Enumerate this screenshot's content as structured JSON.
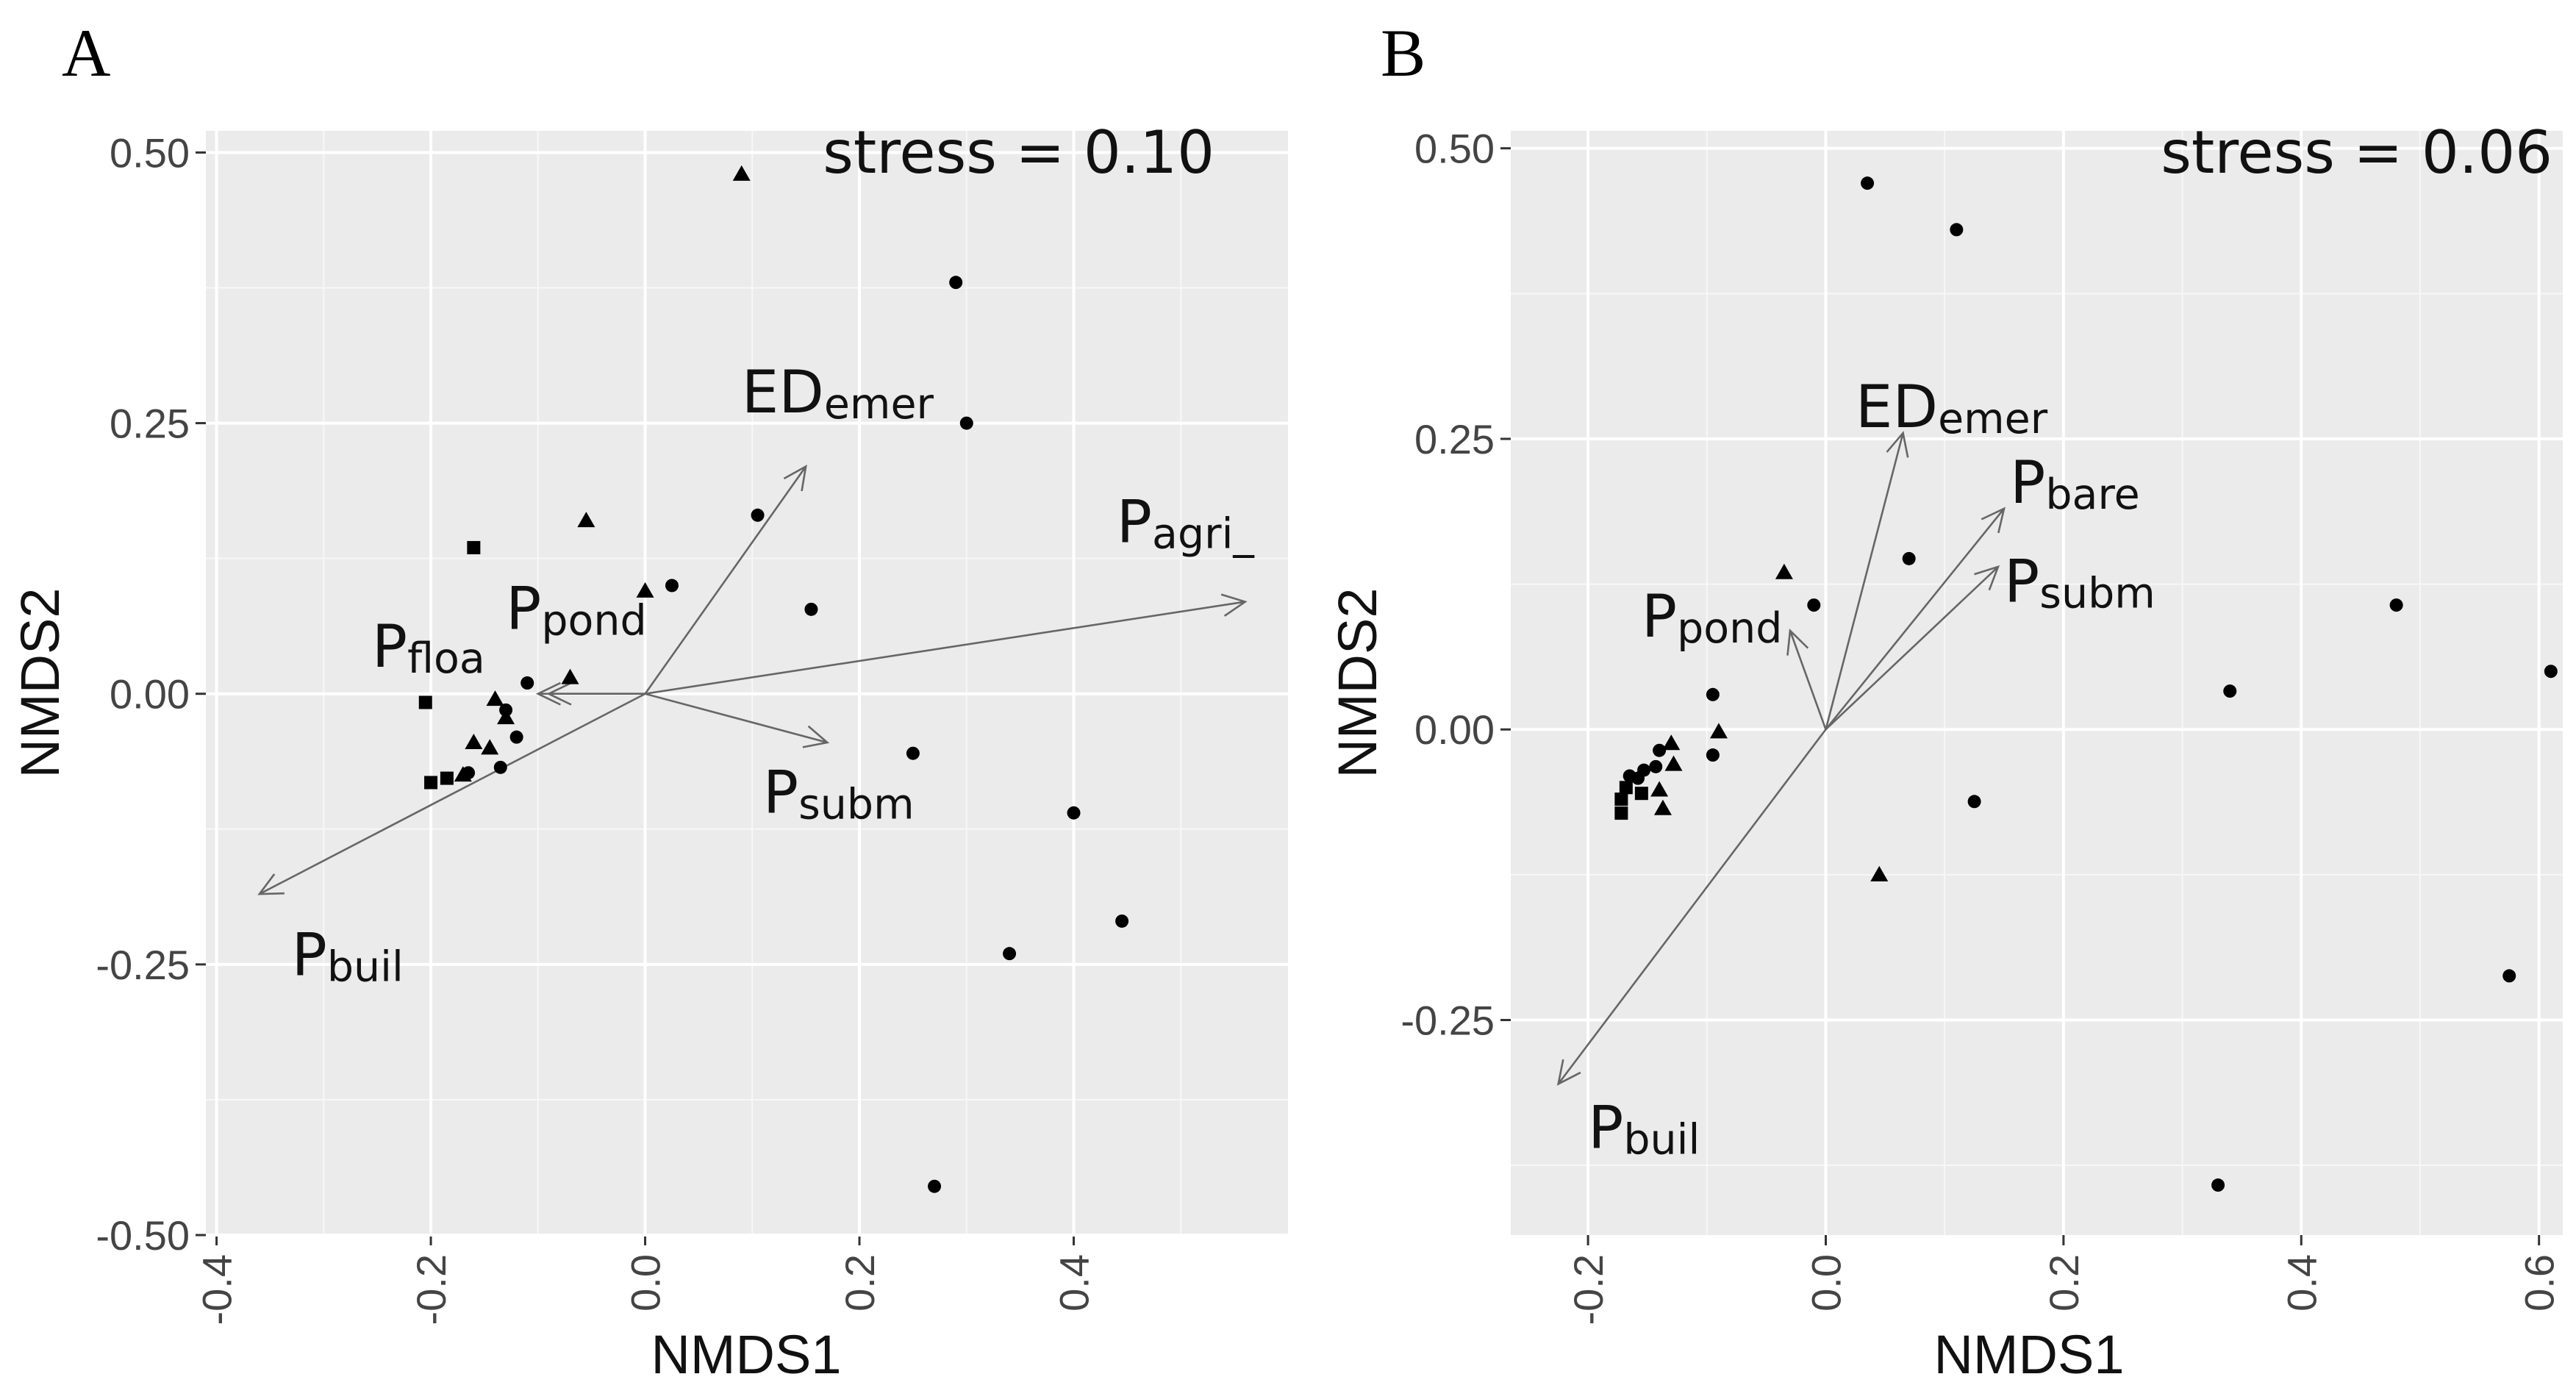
{
  "chart_data": [
    {
      "panel": "A",
      "type": "scatter",
      "stress": "stress = 0.10",
      "xlabel": "NMDS1",
      "ylabel": "NMDS2",
      "xlim": [
        -0.41,
        0.6
      ],
      "ylim": [
        -0.5,
        0.52
      ],
      "xticks": [
        -0.4,
        -0.2,
        0.0,
        0.2,
        0.4
      ],
      "xtick_labels": [
        "-0.4",
        "-0.2",
        "0.0",
        "0.2",
        "0.4"
      ],
      "yticks": [
        0.5,
        0.25,
        0.0,
        -0.25,
        -0.5
      ],
      "ytick_labels": [
        "0.50",
        "0.25",
        "0.00",
        "-0.25",
        "-0.50"
      ],
      "points": [
        {
          "x": 0.09,
          "y": 0.48,
          "shape": "triangle"
        },
        {
          "x": 0.29,
          "y": 0.38,
          "shape": "circle"
        },
        {
          "x": 0.3,
          "y": 0.25,
          "shape": "circle"
        },
        {
          "x": 0.105,
          "y": 0.165,
          "shape": "circle"
        },
        {
          "x": -0.055,
          "y": 0.16,
          "shape": "triangle"
        },
        {
          "x": -0.16,
          "y": 0.135,
          "shape": "square"
        },
        {
          "x": 0.0,
          "y": 0.095,
          "shape": "triangle"
        },
        {
          "x": 0.025,
          "y": 0.1,
          "shape": "circle"
        },
        {
          "x": 0.155,
          "y": 0.078,
          "shape": "circle"
        },
        {
          "x": -0.07,
          "y": 0.015,
          "shape": "triangle"
        },
        {
          "x": -0.11,
          "y": 0.01,
          "shape": "circle"
        },
        {
          "x": -0.205,
          "y": -0.008,
          "shape": "square"
        },
        {
          "x": -0.14,
          "y": -0.005,
          "shape": "triangle"
        },
        {
          "x": -0.13,
          "y": -0.015,
          "shape": "circle"
        },
        {
          "x": -0.13,
          "y": -0.022,
          "shape": "triangle"
        },
        {
          "x": -0.12,
          "y": -0.04,
          "shape": "circle"
        },
        {
          "x": -0.16,
          "y": -0.045,
          "shape": "triangle"
        },
        {
          "x": -0.145,
          "y": -0.05,
          "shape": "triangle"
        },
        {
          "x": -0.135,
          "y": -0.068,
          "shape": "circle"
        },
        {
          "x": -0.17,
          "y": -0.075,
          "shape": "triangle"
        },
        {
          "x": -0.165,
          "y": -0.073,
          "shape": "circle"
        },
        {
          "x": -0.185,
          "y": -0.078,
          "shape": "square"
        },
        {
          "x": -0.2,
          "y": -0.082,
          "shape": "square"
        },
        {
          "x": 0.25,
          "y": -0.055,
          "shape": "circle"
        },
        {
          "x": 0.4,
          "y": -0.11,
          "shape": "circle"
        },
        {
          "x": 0.445,
          "y": -0.21,
          "shape": "circle"
        },
        {
          "x": 0.34,
          "y": -0.24,
          "shape": "circle"
        },
        {
          "x": 0.27,
          "y": -0.455,
          "shape": "circle"
        }
      ],
      "vectors": [
        {
          "name": "ED",
          "sub": "emer",
          "x": 0.15,
          "y": 0.21,
          "label_x": 0.09,
          "label_y": 0.26
        },
        {
          "name": "P",
          "sub": "agri_",
          "x": 0.56,
          "y": 0.085,
          "label_x": 0.44,
          "label_y": 0.14
        },
        {
          "name": "P",
          "sub": "pond",
          "x": -0.09,
          "y": 0.0,
          "label_x": -0.13,
          "label_y": 0.06
        },
        {
          "name": "P",
          "sub": "floa",
          "x": -0.1,
          "y": 0.0,
          "label_x": -0.255,
          "label_y": 0.025
        },
        {
          "name": "P",
          "sub": "subm",
          "x": 0.17,
          "y": -0.045,
          "label_x": 0.11,
          "label_y": -0.11
        },
        {
          "name": "P",
          "sub": "buil",
          "x": -0.36,
          "y": -0.185,
          "label_x": -0.33,
          "label_y": -0.26
        }
      ]
    },
    {
      "panel": "B",
      "type": "scatter",
      "stress": "stress = 0.06",
      "xlabel": "NMDS1",
      "ylabel": "NMDS2",
      "xlim": [
        -0.265,
        0.62
      ],
      "ylim": [
        -0.435,
        0.515
      ],
      "xticks": [
        -0.2,
        0.0,
        0.2,
        0.4,
        0.6
      ],
      "xtick_labels": [
        "-0.2",
        "0.0",
        "0.2",
        "0.4",
        "0.6"
      ],
      "yticks": [
        0.5,
        0.25,
        0.0,
        -0.25
      ],
      "ytick_labels": [
        "0.50",
        "0.25",
        "0.00",
        "-0.25"
      ],
      "points": [
        {
          "x": 0.035,
          "y": 0.47,
          "shape": "circle"
        },
        {
          "x": 0.11,
          "y": 0.43,
          "shape": "circle"
        },
        {
          "x": 0.07,
          "y": 0.147,
          "shape": "circle"
        },
        {
          "x": -0.035,
          "y": 0.135,
          "shape": "triangle"
        },
        {
          "x": -0.01,
          "y": 0.107,
          "shape": "circle"
        },
        {
          "x": 0.48,
          "y": 0.107,
          "shape": "circle"
        },
        {
          "x": 0.61,
          "y": 0.05,
          "shape": "circle"
        },
        {
          "x": 0.34,
          "y": 0.033,
          "shape": "circle"
        },
        {
          "x": -0.095,
          "y": 0.03,
          "shape": "circle"
        },
        {
          "x": -0.09,
          "y": -0.002,
          "shape": "triangle"
        },
        {
          "x": -0.095,
          "y": -0.022,
          "shape": "circle"
        },
        {
          "x": -0.13,
          "y": -0.012,
          "shape": "triangle"
        },
        {
          "x": -0.128,
          "y": -0.03,
          "shape": "triangle"
        },
        {
          "x": -0.14,
          "y": -0.018,
          "shape": "circle"
        },
        {
          "x": -0.143,
          "y": -0.032,
          "shape": "circle"
        },
        {
          "x": -0.153,
          "y": -0.035,
          "shape": "circle"
        },
        {
          "x": -0.158,
          "y": -0.042,
          "shape": "circle"
        },
        {
          "x": -0.165,
          "y": -0.04,
          "shape": "circle"
        },
        {
          "x": -0.168,
          "y": -0.05,
          "shape": "square"
        },
        {
          "x": -0.172,
          "y": -0.06,
          "shape": "square"
        },
        {
          "x": -0.172,
          "y": -0.072,
          "shape": "square"
        },
        {
          "x": -0.155,
          "y": -0.055,
          "shape": "square"
        },
        {
          "x": -0.14,
          "y": -0.052,
          "shape": "triangle"
        },
        {
          "x": -0.137,
          "y": -0.068,
          "shape": "triangle"
        },
        {
          "x": 0.125,
          "y": -0.062,
          "shape": "circle"
        },
        {
          "x": 0.045,
          "y": -0.125,
          "shape": "triangle"
        },
        {
          "x": 0.575,
          "y": -0.212,
          "shape": "circle"
        },
        {
          "x": 0.33,
          "y": -0.392,
          "shape": "circle"
        }
      ],
      "vectors": [
        {
          "name": "ED",
          "sub": "emer",
          "x": 0.065,
          "y": 0.255,
          "label_x": 0.025,
          "label_y": 0.26
        },
        {
          "name": "P",
          "sub": "bare",
          "x": 0.15,
          "y": 0.19,
          "label_x": 0.155,
          "label_y": 0.195
        },
        {
          "name": "P",
          "sub": "subm",
          "x": 0.145,
          "y": 0.14,
          "label_x": 0.15,
          "label_y": 0.11
        },
        {
          "name": "P",
          "sub": "pond",
          "x": -0.03,
          "y": 0.085,
          "label_x": -0.155,
          "label_y": 0.08
        },
        {
          "name": "P",
          "sub": "buil",
          "x": -0.225,
          "y": -0.305,
          "label_x": -0.2,
          "label_y": -0.36
        }
      ]
    }
  ]
}
